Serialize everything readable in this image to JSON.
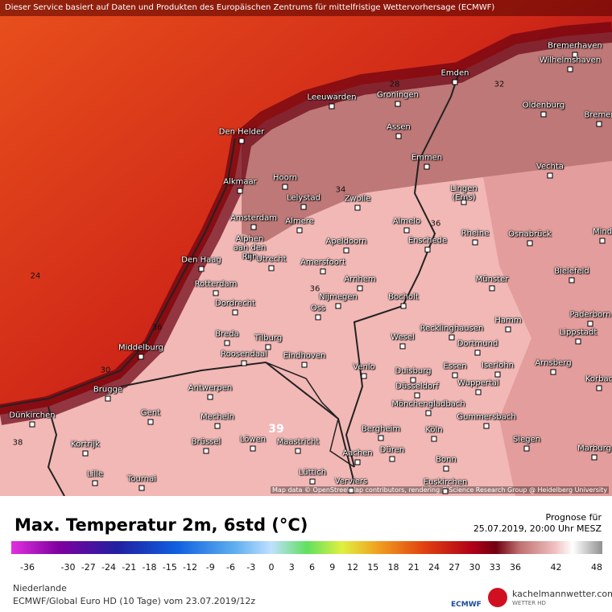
{
  "header": {
    "notice": "Dieser Service basiert auf Daten und Produkten des Europäischen Zentrums für mittelfristige Wettervorhersage (ECMWF)"
  },
  "map": {
    "attribution": "Map data © OpenStreetMap contributors, rendering GIScience Research Group @ Heidelberg University",
    "cities": [
      "Bremerhaven",
      "Wilhelmshaven",
      "Emden",
      "Groningen",
      "Leeuwarden",
      "Oldenburg",
      "Bremer",
      "Den Helder",
      "Assen",
      "Emmen",
      "Vechta",
      "Alkmaar",
      "Hoorn",
      "Lingen\n(Ems)",
      "Lelystad",
      "Zwolle",
      "Amsterdam",
      "Almere",
      "Almelo",
      "Rheine",
      "Osnabrück",
      "Mind",
      "Alphen\naan den\nRijn",
      "Apeldoorn",
      "Enschede",
      "Utrecht",
      "Amersfoort",
      "Bielefeld",
      "Den Haag",
      "Arnhem",
      "Münster",
      "Rotterdam",
      "Nijmegen",
      "Bocholt",
      "Dordrecht",
      "Oss",
      "Paderborn",
      "Hamm",
      "Recklinghausen",
      "Lippstadt",
      "Breda",
      "Tilburg",
      "Wesel",
      "Middelburg",
      "Dortmund",
      "Roosendaal",
      "Eindhoven",
      "Iserlohn",
      "Arnsberg",
      "Venlo",
      "Essen",
      "Duisburg",
      "Korbac",
      "Wuppertal",
      "Düsseldorf",
      "Antwerpen",
      "Brugge",
      "Mönchengladbach",
      "Dünkirchen",
      "Gent",
      "Mecheln",
      "Gummersbach",
      "Bergheim",
      "Köln",
      "Brüssel",
      "Löwen",
      "Maastricht",
      "Siegen",
      "Marburg",
      "Kortrijk",
      "Düren",
      "Aachen",
      "Bonn",
      "Lille",
      "Tournai",
      "Lüttich",
      "Verviers",
      "Euskirchen"
    ],
    "contour_labels": [
      "24",
      "30",
      "36",
      "38",
      "39",
      "34",
      "36",
      "36",
      "32",
      "28"
    ]
  },
  "legend": {
    "title": "Max. Temperatur 2m, 6std (°C)",
    "forecast_label": "Prognose für",
    "forecast_time": "25.07.2019, 20:00 Uhr MESZ",
    "colorbar_ticks": [
      -36,
      -30,
      -27,
      -24,
      -21,
      -18,
      -15,
      -12,
      -9,
      -6,
      -3,
      0,
      3,
      6,
      9,
      12,
      15,
      18,
      21,
      24,
      27,
      30,
      33,
      36,
      42,
      48
    ]
  },
  "footer": {
    "region": "Niederlande",
    "model": "ECMWF/Global Euro HD (10 Tage) vom 23.07.2019/12z",
    "ecmwf": "ECMWF",
    "brand": "kachelmannwetter.com",
    "brand_sub": "WETTER HD"
  }
}
